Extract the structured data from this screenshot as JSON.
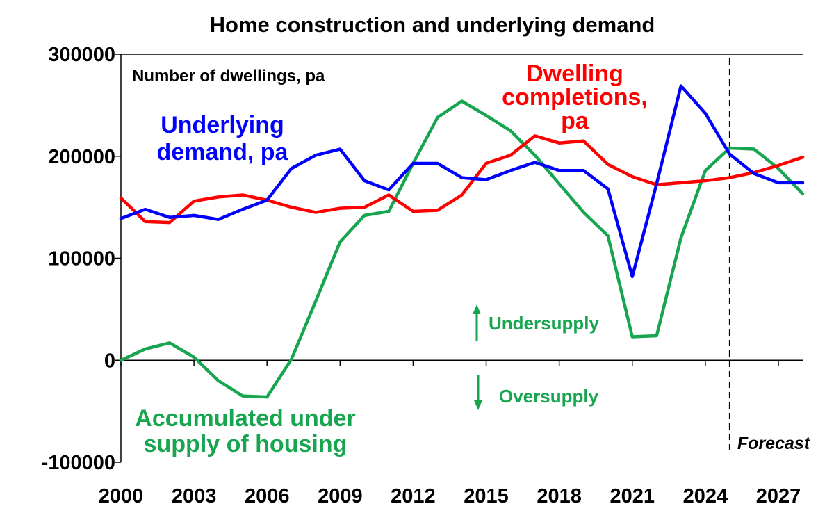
{
  "chart_data": {
    "type": "line",
    "title": "Home construction and underlying demand",
    "ylabel": "Number of dwellings, pa",
    "xlim": [
      2000,
      2028
    ],
    "ylim": [
      -100000,
      300000
    ],
    "y_ticks": [
      -100000,
      0,
      100000,
      200000,
      300000
    ],
    "x_tick_labels": [
      "2000",
      "2003",
      "2006",
      "2009",
      "2012",
      "2015",
      "2018",
      "2021",
      "2024",
      "2027"
    ],
    "grid": false,
    "forecast_from": 2025,
    "forecast_label": "Forecast",
    "series": [
      {
        "name": "Underlying demand, pa",
        "color": "#0000ff",
        "x": [
          2000,
          2001,
          2002,
          2003,
          2004,
          2005,
          2006,
          2007,
          2008,
          2009,
          2010,
          2011,
          2012,
          2013,
          2014,
          2015,
          2016,
          2017,
          2018,
          2019,
          2020,
          2021,
          2022,
          2023,
          2024,
          2025,
          2026,
          2027,
          2028
        ],
        "values": [
          139000,
          148000,
          140000,
          142000,
          138000,
          148000,
          157000,
          188000,
          201000,
          207000,
          176000,
          167000,
          193000,
          193000,
          179000,
          177000,
          186000,
          194000,
          186000,
          186000,
          168000,
          82000,
          173000,
          269000,
          242000,
          202000,
          183000,
          174000,
          174000
        ]
      },
      {
        "name": "Dwelling completions, pa",
        "color": "#ff0000",
        "x": [
          2000,
          2001,
          2002,
          2003,
          2004,
          2005,
          2006,
          2007,
          2008,
          2009,
          2010,
          2011,
          2012,
          2013,
          2014,
          2015,
          2016,
          2017,
          2018,
          2019,
          2020,
          2021,
          2022,
          2023,
          2024,
          2025,
          2026,
          2027,
          2028
        ],
        "values": [
          159000,
          136000,
          135000,
          156000,
          160000,
          162000,
          157000,
          150000,
          145000,
          149000,
          150000,
          162000,
          146000,
          147000,
          162000,
          193000,
          201000,
          220000,
          213000,
          215000,
          192000,
          180000,
          172000,
          174000,
          176000,
          179000,
          184000,
          191000,
          199000
        ]
      },
      {
        "name": "Accumulated under supply of housing",
        "color": "#17a550",
        "x": [
          2000,
          2001,
          2002,
          2003,
          2004,
          2005,
          2006,
          2007,
          2008,
          2009,
          2010,
          2011,
          2012,
          2013,
          2014,
          2015,
          2016,
          2017,
          2018,
          2019,
          2020,
          2021,
          2022,
          2023,
          2024,
          2025,
          2026,
          2027,
          2028
        ],
        "values": [
          0,
          11000,
          17000,
          3000,
          -20000,
          -35000,
          -36000,
          1000,
          58000,
          116000,
          142000,
          146000,
          193000,
          238000,
          254000,
          240000,
          225000,
          201000,
          173000,
          145000,
          122000,
          23000,
          24000,
          120000,
          186000,
          208000,
          207000,
          188000,
          163000
        ]
      }
    ],
    "annotations": {
      "demand": [
        "Underlying",
        "demand, pa"
      ],
      "completions": [
        "Dwelling",
        "completions,",
        "pa"
      ],
      "undersupply_accum": [
        "Accumulated under",
        "supply of housing"
      ],
      "undersupply": "Undersupply",
      "oversupply": "Oversupply"
    }
  }
}
